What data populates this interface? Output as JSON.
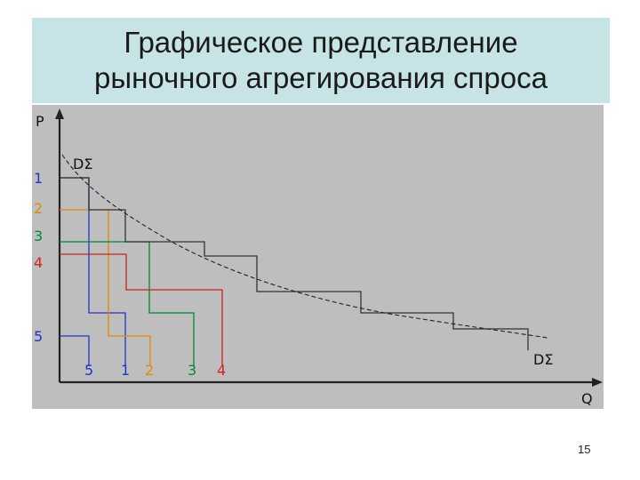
{
  "slide": {
    "title_line1": "Графическое представление",
    "title_line2": "рыночного агрегирования спроса",
    "page_number": "15"
  },
  "diagram": {
    "axis_y_label": "P",
    "axis_x_label": "Q",
    "curve_label_top": "DΣ",
    "curve_label_bottom": "DΣ",
    "price_labels": [
      {
        "text": "1",
        "color": "#2233cc"
      },
      {
        "text": "2",
        "color": "#e08a00"
      },
      {
        "text": "3",
        "color": "#008a2e"
      },
      {
        "text": "4",
        "color": "#cc2222"
      },
      {
        "text": "5",
        "color": "#2233cc"
      }
    ],
    "consumer_labels": [
      {
        "text": "5",
        "color": "#2233cc"
      },
      {
        "text": "1",
        "color": "#2233cc"
      },
      {
        "text": "2",
        "color": "#e08a00"
      },
      {
        "text": "3",
        "color": "#008a2e"
      },
      {
        "text": "4",
        "color": "#cc2222"
      }
    ],
    "colors": {
      "consumer_1": "#2233cc",
      "consumer_2": "#e08a00",
      "consumer_3": "#008a2e",
      "consumer_4": "#cc2222",
      "aggregate": "#333333"
    }
  }
}
